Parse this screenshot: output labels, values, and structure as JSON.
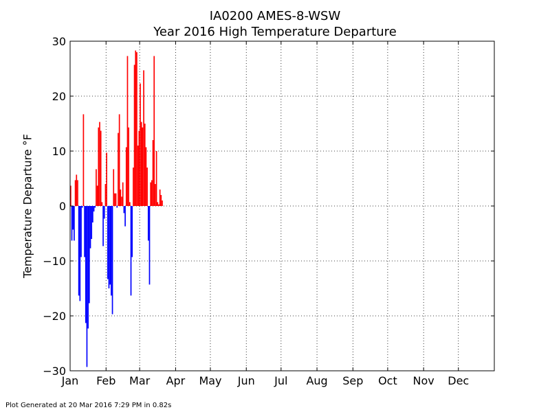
{
  "header": {
    "title_line1": "IA0200 AMES-8-WSW",
    "title_line2": "Year 2016 High Temperature Departure"
  },
  "footer": {
    "text": "Plot Generated at 20 Mar 2016 7:29 PM in 0.82s"
  },
  "chart_data": {
    "type": "bar",
    "title": "IA0200 AMES-8-WSW\nYear 2016 High Temperature Departure",
    "xlabel": "",
    "ylabel": "Temperature Departure °F",
    "xlim": [
      0,
      366
    ],
    "ylim": [
      -30,
      30
    ],
    "yticks": [
      -30,
      -20,
      -10,
      0,
      10,
      20,
      30
    ],
    "ytick_labels": [
      "−30",
      "−20",
      "−10",
      "0",
      "10",
      "20",
      "30"
    ],
    "month_ticks": [
      {
        "day": 0,
        "label": "Jan"
      },
      {
        "day": 31,
        "label": "Feb"
      },
      {
        "day": 60,
        "label": "Mar"
      },
      {
        "day": 91,
        "label": "Apr"
      },
      {
        "day": 121,
        "label": "May"
      },
      {
        "day": 152,
        "label": "Jun"
      },
      {
        "day": 182,
        "label": "Jul"
      },
      {
        "day": 213,
        "label": "Aug"
      },
      {
        "day": 244,
        "label": "Sep"
      },
      {
        "day": 274,
        "label": "Oct"
      },
      {
        "day": 305,
        "label": "Nov"
      },
      {
        "day": 335,
        "label": "Dec"
      }
    ],
    "grid": true,
    "colors": {
      "positive": "#ff0000",
      "negative": "#0000ff"
    },
    "day_of_year": [
      1,
      2,
      3,
      4,
      5,
      6,
      7,
      8,
      9,
      10,
      11,
      12,
      13,
      14,
      15,
      16,
      17,
      18,
      19,
      20,
      21,
      22,
      23,
      24,
      25,
      26,
      27,
      28,
      29,
      30,
      31,
      32,
      33,
      34,
      35,
      36,
      37,
      38,
      39,
      40,
      41,
      42,
      43,
      44,
      45,
      46,
      47,
      48,
      49,
      50,
      51,
      52,
      53,
      54,
      55,
      56,
      57,
      58,
      59,
      60,
      61,
      62,
      63,
      64,
      65,
      66,
      67,
      68,
      69,
      70,
      71,
      72,
      73,
      74,
      75,
      76,
      77,
      78,
      79,
      80
    ],
    "values": [
      3.7,
      -6.3,
      -4.3,
      -6.3,
      4.7,
      5.7,
      4.7,
      -16.3,
      -17.3,
      -9.3,
      -0.3,
      16.7,
      -9.3,
      -21.3,
      -29.3,
      -22.3,
      -17.7,
      -7.7,
      -6.0,
      -3.0,
      -1.0,
      -0.3,
      6.7,
      3.7,
      14.3,
      15.3,
      13.7,
      0.7,
      -7.3,
      -2.3,
      4.0,
      9.7,
      -13.3,
      -15.0,
      -14.3,
      -16.3,
      -19.7,
      6.7,
      2.3,
      2.3,
      -0.3,
      13.3,
      16.7,
      3.0,
      1.7,
      4.3,
      -1.3,
      -3.7,
      10.7,
      27.3,
      14.3,
      0.7,
      -16.3,
      -9.3,
      7.0,
      25.7,
      28.3,
      28.0,
      11.0,
      13.7,
      22.3,
      15.3,
      14.3,
      24.7,
      15.0,
      10.7,
      7.0,
      -6.3,
      -14.3,
      4.3,
      4.7,
      12.0,
      27.3,
      4.0,
      10.0,
      0.7,
      0.3,
      3.0,
      2.0,
      1.0
    ]
  }
}
